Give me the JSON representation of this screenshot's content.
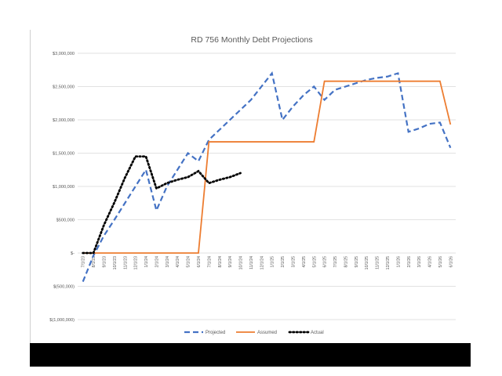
{
  "chart_data": {
    "type": "line",
    "title": "RD 756 Monthly Debt Projections",
    "xlabel": "",
    "ylabel": "",
    "ylim": [
      -1000000,
      3000000
    ],
    "y_ticks": [
      3000000,
      2500000,
      2000000,
      1500000,
      1000000,
      500000,
      0,
      -500000,
      -1000000
    ],
    "y_tick_labels": [
      "$3,000,000",
      "$2,500,000",
      "$2,000,000",
      "$1,500,000",
      "$1,000,000",
      "$500,000",
      "$-",
      "$(500,000)",
      "$(1,000,000)"
    ],
    "grid": true,
    "legend_position": "bottom",
    "categories": [
      "7/1/23",
      "8/1/23",
      "9/1/23",
      "10/1/23",
      "11/1/23",
      "12/1/23",
      "1/1/24",
      "2/1/24",
      "3/1/24",
      "4/1/24",
      "5/1/24",
      "6/1/24",
      "7/1/24",
      "8/1/24",
      "9/1/24",
      "10/1/24",
      "11/1/24",
      "12/1/24",
      "1/1/25",
      "2/1/25",
      "3/1/25",
      "4/1/25",
      "5/1/25",
      "6/1/25",
      "7/1/25",
      "8/1/25",
      "9/1/25",
      "10/1/25",
      "11/1/25",
      "12/1/25",
      "1/1/26",
      "2/1/26",
      "3/1/26",
      "4/1/26",
      "5/1/26",
      "6/1/26"
    ],
    "series": [
      {
        "name": "Projected",
        "color": "#4472c4",
        "style": "dashed",
        "values": [
          -430000,
          -40000,
          260000,
          500000,
          750000,
          1000000,
          1250000,
          640000,
          1000000,
          1250000,
          1500000,
          1380000,
          1700000,
          1850000,
          2000000,
          2150000,
          2300000,
          2500000,
          2700000,
          2000000,
          2200000,
          2370000,
          2500000,
          2300000,
          2450000,
          2500000,
          2550000,
          2600000,
          2630000,
          2650000,
          2700000,
          1820000,
          1870000,
          1940000,
          1960000,
          1580000
        ]
      },
      {
        "name": "Assumed",
        "color": "#ed7d31",
        "style": "solid",
        "values": [
          0,
          0,
          0,
          0,
          0,
          0,
          0,
          0,
          0,
          0,
          0,
          0,
          1670000,
          1670000,
          1670000,
          1670000,
          1670000,
          1670000,
          1670000,
          1670000,
          1670000,
          1670000,
          1670000,
          2580000,
          2580000,
          2580000,
          2580000,
          2580000,
          2580000,
          2580000,
          2580000,
          2580000,
          2580000,
          2580000,
          2580000,
          1930000
        ]
      },
      {
        "name": "Actual",
        "color": "#000000",
        "style": "dotted",
        "values": [
          0,
          0,
          420000,
          760000,
          1130000,
          1450000,
          1450000,
          970000,
          1050000,
          1100000,
          1140000,
          1230000,
          1050000,
          1100000,
          1140000,
          1200000,
          null,
          null,
          null,
          null,
          null,
          null,
          null,
          null,
          null,
          null,
          null,
          null,
          null,
          null,
          null,
          null,
          null,
          null,
          null,
          null
        ]
      }
    ]
  }
}
